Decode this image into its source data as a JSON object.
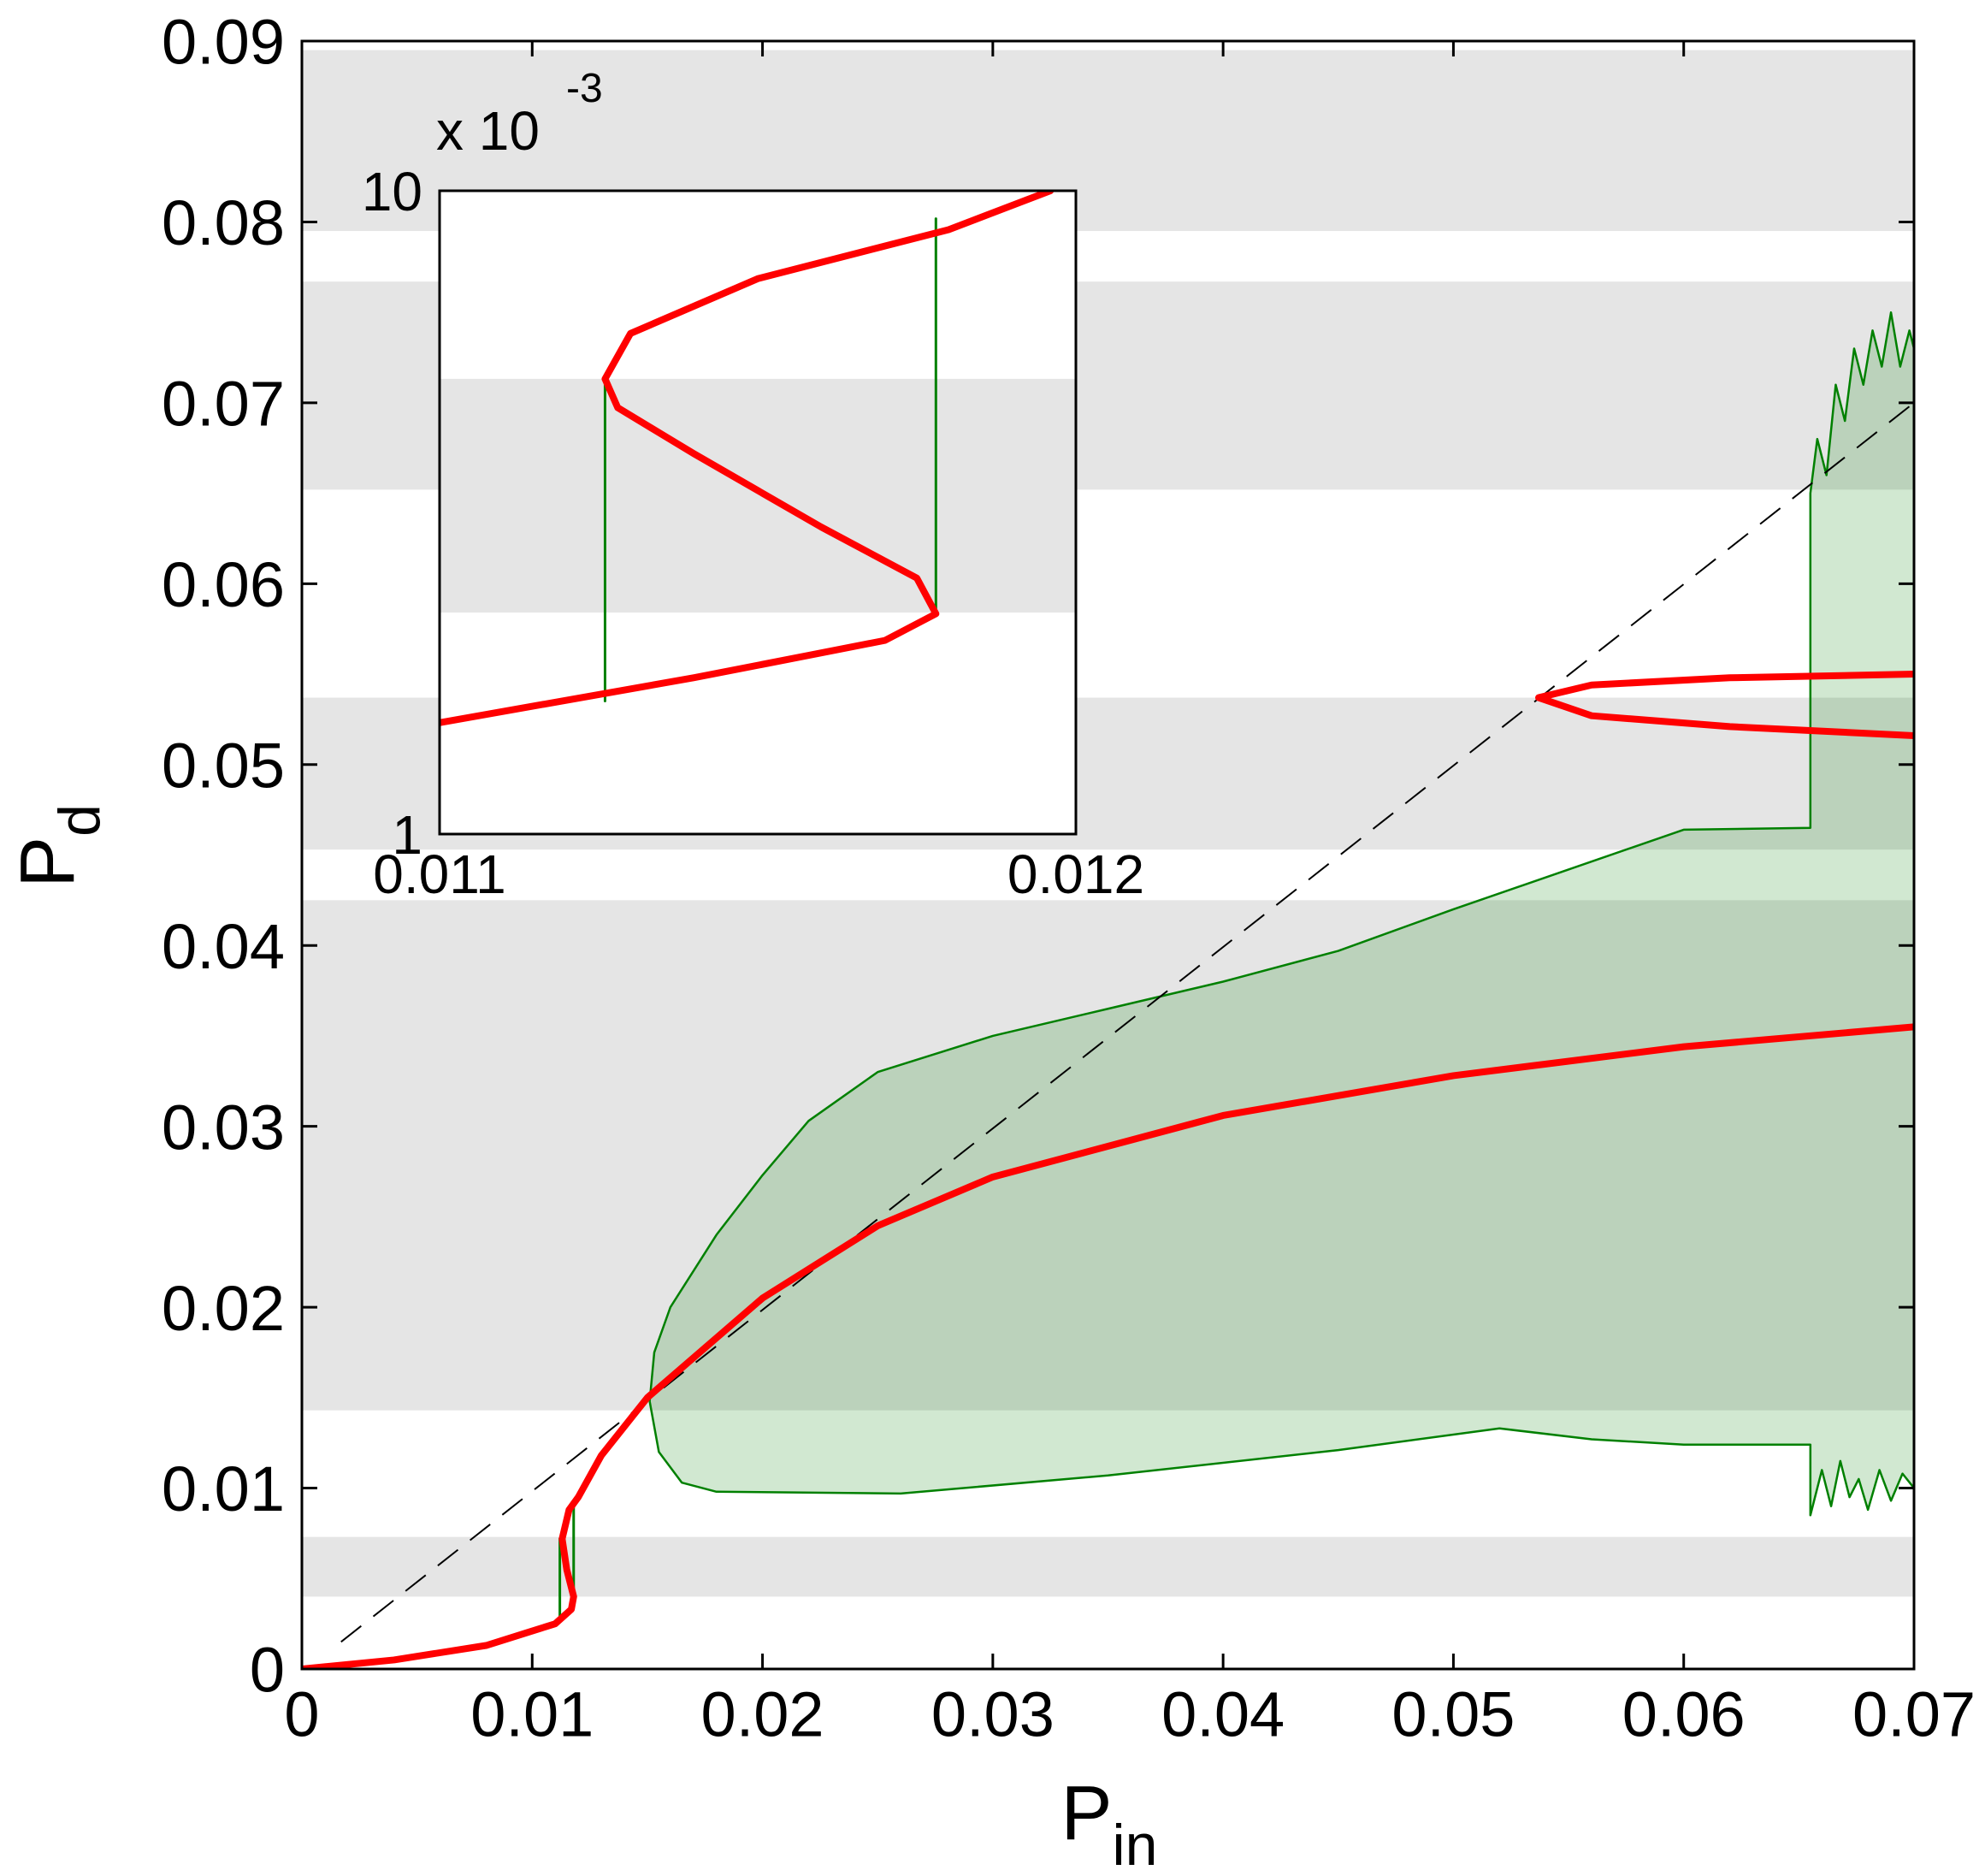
{
  "chart_data": [
    {
      "type": "line",
      "xlabel": {
        "main": "P",
        "sub": "in"
      },
      "ylabel": {
        "main": "P",
        "sub": "d"
      },
      "xlim": [
        0,
        0.07
      ],
      "ylim": [
        0,
        0.09
      ],
      "xticks": [
        0,
        0.01,
        0.02,
        0.03,
        0.04,
        0.05,
        0.06,
        0.07
      ],
      "yticks": [
        0,
        0.01,
        0.02,
        0.03,
        0.04,
        0.05,
        0.06,
        0.07,
        0.08,
        0.09
      ],
      "band_color": "#e5e5e5",
      "bands": [
        [
          0.0795,
          0.0895
        ],
        [
          0.0652,
          0.0767
        ],
        [
          0.0453,
          0.0537
        ],
        [
          0.0143,
          0.0425
        ],
        [
          0.004,
          0.0073
        ]
      ],
      "area": {
        "color": "#008000",
        "upper": {
          "x": [
            0.0151,
            0.0153,
            0.016,
            0.018,
            0.02,
            0.022,
            0.025,
            0.03,
            0.035,
            0.04,
            0.045,
            0.05,
            0.055,
            0.06,
            0.0655,
            0.0655,
            0.0658,
            0.0662,
            0.0666,
            0.067,
            0.0674,
            0.0678,
            0.0682,
            0.0686,
            0.069,
            0.0694,
            0.0698,
            0.07
          ],
          "values": [
            0.0148,
            0.0175,
            0.02,
            0.024,
            0.0273,
            0.0303,
            0.033,
            0.035,
            0.0365,
            0.038,
            0.0397,
            0.042,
            0.0442,
            0.0464,
            0.0465,
            0.065,
            0.068,
            0.066,
            0.071,
            0.069,
            0.073,
            0.071,
            0.074,
            0.072,
            0.075,
            0.072,
            0.074,
            0.073
          ]
        },
        "lower": {
          "x": [
            0.0151,
            0.0155,
            0.0165,
            0.018,
            0.026,
            0.035,
            0.045,
            0.052,
            0.056,
            0.06,
            0.0655,
            0.0655,
            0.066,
            0.0664,
            0.0668,
            0.0672,
            0.0676,
            0.068,
            0.0685,
            0.069,
            0.0695,
            0.07
          ],
          "values": [
            0.0148,
            0.012,
            0.0103,
            0.0098,
            0.0097,
            0.0107,
            0.0121,
            0.0133,
            0.0127,
            0.0124,
            0.0124,
            0.0085,
            0.011,
            0.009,
            0.0115,
            0.0095,
            0.0105,
            0.0088,
            0.011,
            0.0093,
            0.0108,
            0.01
          ]
        }
      },
      "series": [
        {
          "color": "#000000",
          "linestyle": "dashed",
          "x": [
            0.0017,
            0.07
          ],
          "values": [
            0.0015,
            0.07
          ]
        },
        {
          "color": "#008000",
          "x": [
            0.0112,
            0.0112
          ],
          "values": [
            0.0027,
            0.0072
          ]
        },
        {
          "color": "#008000",
          "x": [
            0.0118,
            0.0118
          ],
          "values": [
            0.0035,
            0.0093
          ]
        },
        {
          "color": "#ff0000",
          "x": [
            0,
            0.004,
            0.008,
            0.011,
            0.0117,
            0.0118,
            0.0115,
            0.0113,
            0.0116,
            0.012,
            0.013,
            0.015,
            0.02,
            0.025,
            0.03,
            0.04,
            0.05,
            0.06,
            0.07
          ],
          "values": [
            0,
            0.0005,
            0.0013,
            0.0025,
            0.0033,
            0.004,
            0.0055,
            0.0072,
            0.0088,
            0.0095,
            0.0118,
            0.015,
            0.0205,
            0.0245,
            0.0272,
            0.0306,
            0.0328,
            0.0344,
            0.0355
          ]
        },
        {
          "color": "#ff0000",
          "x": [
            0.07,
            0.062,
            0.056,
            0.0537,
            0.056,
            0.062,
            0.07
          ],
          "values": [
            0.055,
            0.0548,
            0.0544,
            0.0537,
            0.0527,
            0.0521,
            0.0516
          ]
        }
      ]
    },
    {
      "type": "line",
      "log_y": true,
      "y_multiplier": {
        "text": "x 10",
        "exponent": "-3"
      },
      "xlim": [
        0.011,
        0.012
      ],
      "ylim": [
        1,
        10
      ],
      "xticks": [
        0.011,
        0.012
      ],
      "yticks": [
        1,
        10
      ],
      "band_color": "#e5e5e5",
      "bands": [
        [
          2.21,
          5.1
        ]
      ],
      "series": [
        {
          "color": "#008000",
          "x": [
            0.01126,
            0.01126
          ],
          "values": [
            1.61,
            5.1
          ]
        },
        {
          "color": "#008000",
          "x": [
            0.01178,
            0.01178
          ],
          "values": [
            2.2,
            9.05
          ]
        },
        {
          "color": "#ff0000",
          "x": [
            0.011,
            0.0114,
            0.0117,
            0.01178,
            0.01175,
            0.0116,
            0.0114,
            0.01128,
            0.01126,
            0.0113,
            0.0115,
            0.0118,
            0.01196
          ],
          "values": [
            1.49,
            1.75,
            2.0,
            2.2,
            2.5,
            3.0,
            3.9,
            4.6,
            5.1,
            6.0,
            7.3,
            8.7,
            10
          ]
        }
      ]
    }
  ]
}
